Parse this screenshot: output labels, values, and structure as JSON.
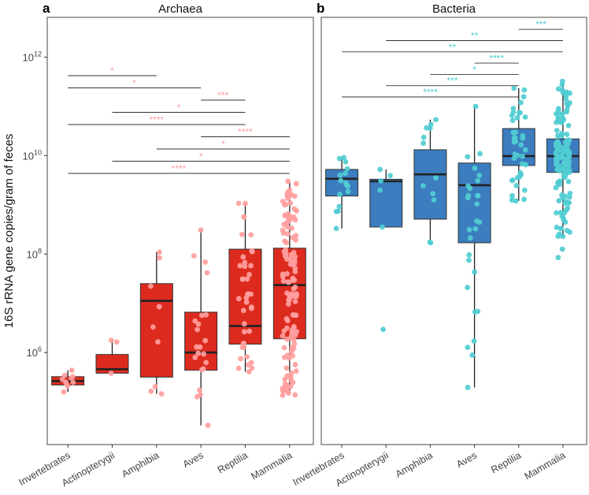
{
  "ylabel": "16S rRNA gene copies/gram of feces",
  "colors": {
    "archaea_box": "#DC2B1E",
    "archaea_point": "#FF9E9E",
    "bacteria_box": "#3B7DBE",
    "bacteria_point": "#50CDD2",
    "median": "#222222",
    "frame": "#666666"
  },
  "chart_data": [
    {
      "type": "box",
      "panel_label": "a",
      "title": "Archaea",
      "yscale": "log10",
      "ylim_log10": [
        4.13,
        12.81
      ],
      "yticks_log10": [
        6,
        8,
        10,
        12
      ],
      "ytick_base": "10",
      "categories": [
        "Invertebrates",
        "Actinopterygii",
        "Amphibia",
        "Aves",
        "Reptilia",
        "Mammalia"
      ],
      "boxes_log10": [
        {
          "category": "Invertebrates",
          "min": 5.2,
          "q1": 5.34,
          "median": 5.42,
          "q3": 5.51,
          "max": 5.64,
          "n": 10
        },
        {
          "category": "Actinopterygii",
          "min": 5.58,
          "q1": 5.58,
          "median": 5.66,
          "q3": 5.96,
          "max": 6.25,
          "n": 3
        },
        {
          "category": "Amphibia",
          "min": 5.16,
          "q1": 5.5,
          "median": 7.05,
          "q3": 7.4,
          "max": 8.04,
          "n": 9
        },
        {
          "category": "Aves",
          "min": 4.52,
          "q1": 5.64,
          "median": 6.0,
          "q3": 6.82,
          "max": 8.49,
          "n": 22
        },
        {
          "category": "Reptilia",
          "min": 5.61,
          "q1": 6.17,
          "median": 6.54,
          "q3": 8.1,
          "max": 9.03,
          "n": 40
        },
        {
          "category": "Mammalia",
          "min": 5.13,
          "q1": 6.28,
          "median": 7.37,
          "q3": 8.12,
          "max": 9.48,
          "n": 130
        }
      ],
      "significance": [
        {
          "from": "Invertebrates",
          "to": "Mammalia",
          "label": "****",
          "level": 0
        },
        {
          "from": "Actinopterygii",
          "to": "Mammalia",
          "label": "*",
          "level": 1
        },
        {
          "from": "Amphibia",
          "to": "Mammalia",
          "label": "*",
          "level": 2
        },
        {
          "from": "Aves",
          "to": "Mammalia",
          "label": "****",
          "level": 3
        },
        {
          "from": "Invertebrates",
          "to": "Reptilia",
          "label": "****",
          "level": 4
        },
        {
          "from": "Actinopterygii",
          "to": "Reptilia",
          "label": "*",
          "level": 5
        },
        {
          "from": "Aves",
          "to": "Reptilia",
          "label": "***",
          "level": 6
        },
        {
          "from": "Invertebrates",
          "to": "Aves",
          "label": "*",
          "level": 7
        },
        {
          "from": "Invertebrates",
          "to": "Amphibia",
          "label": "*",
          "level": 8
        }
      ]
    },
    {
      "type": "box",
      "panel_label": "b",
      "title": "Bacteria",
      "yscale": "log10",
      "ylim_log10": [
        4.13,
        12.81
      ],
      "categories": [
        "Invertebrates",
        "Actinopterygii",
        "Amphibia",
        "Aves",
        "Reptilia",
        "Mammalia"
      ],
      "boxes_log10": [
        {
          "category": "Invertebrates",
          "min": 8.52,
          "q1": 9.18,
          "median": 9.53,
          "q3": 9.72,
          "max": 9.96,
          "n": 16
        },
        {
          "category": "Actinopterygii",
          "min": 8.55,
          "q1": 8.55,
          "median": 9.48,
          "q3": 9.52,
          "max": 9.72,
          "n": 5,
          "outliers": [
            6.47
          ]
        },
        {
          "category": "Amphibia",
          "min": 8.23,
          "q1": 8.71,
          "median": 9.62,
          "q3": 10.12,
          "max": 10.73,
          "n": 12
        },
        {
          "category": "Aves",
          "min": 5.29,
          "q1": 8.23,
          "median": 9.4,
          "q3": 9.85,
          "max": 11.0,
          "n": 28
        },
        {
          "category": "Reptilia",
          "min": 9.08,
          "q1": 9.8,
          "median": 9.99,
          "q3": 10.55,
          "max": 11.37,
          "n": 40
        },
        {
          "category": "Mammalia",
          "min": 8.36,
          "q1": 9.66,
          "median": 9.99,
          "q3": 10.34,
          "max": 11.51,
          "n": 140,
          "outliers": [
            7.93,
            8.1
          ]
        }
      ],
      "significance": [
        {
          "from": "Invertebrates",
          "to": "Reptilia",
          "label": "****",
          "level": 0
        },
        {
          "from": "Actinopterygii",
          "to": "Reptilia",
          "label": "***",
          "level": 1
        },
        {
          "from": "Amphibia",
          "to": "Reptilia",
          "label": "*",
          "level": 2
        },
        {
          "from": "Aves",
          "to": "Reptilia",
          "label": "****",
          "level": 3
        },
        {
          "from": "Invertebrates",
          "to": "Mammalia",
          "label": "**",
          "level": 4
        },
        {
          "from": "Actinopterygii",
          "to": "Mammalia",
          "label": "**",
          "level": 5
        },
        {
          "from": "Reptilia",
          "to": "Mammalia",
          "label": "***",
          "level": 6
        }
      ]
    }
  ]
}
